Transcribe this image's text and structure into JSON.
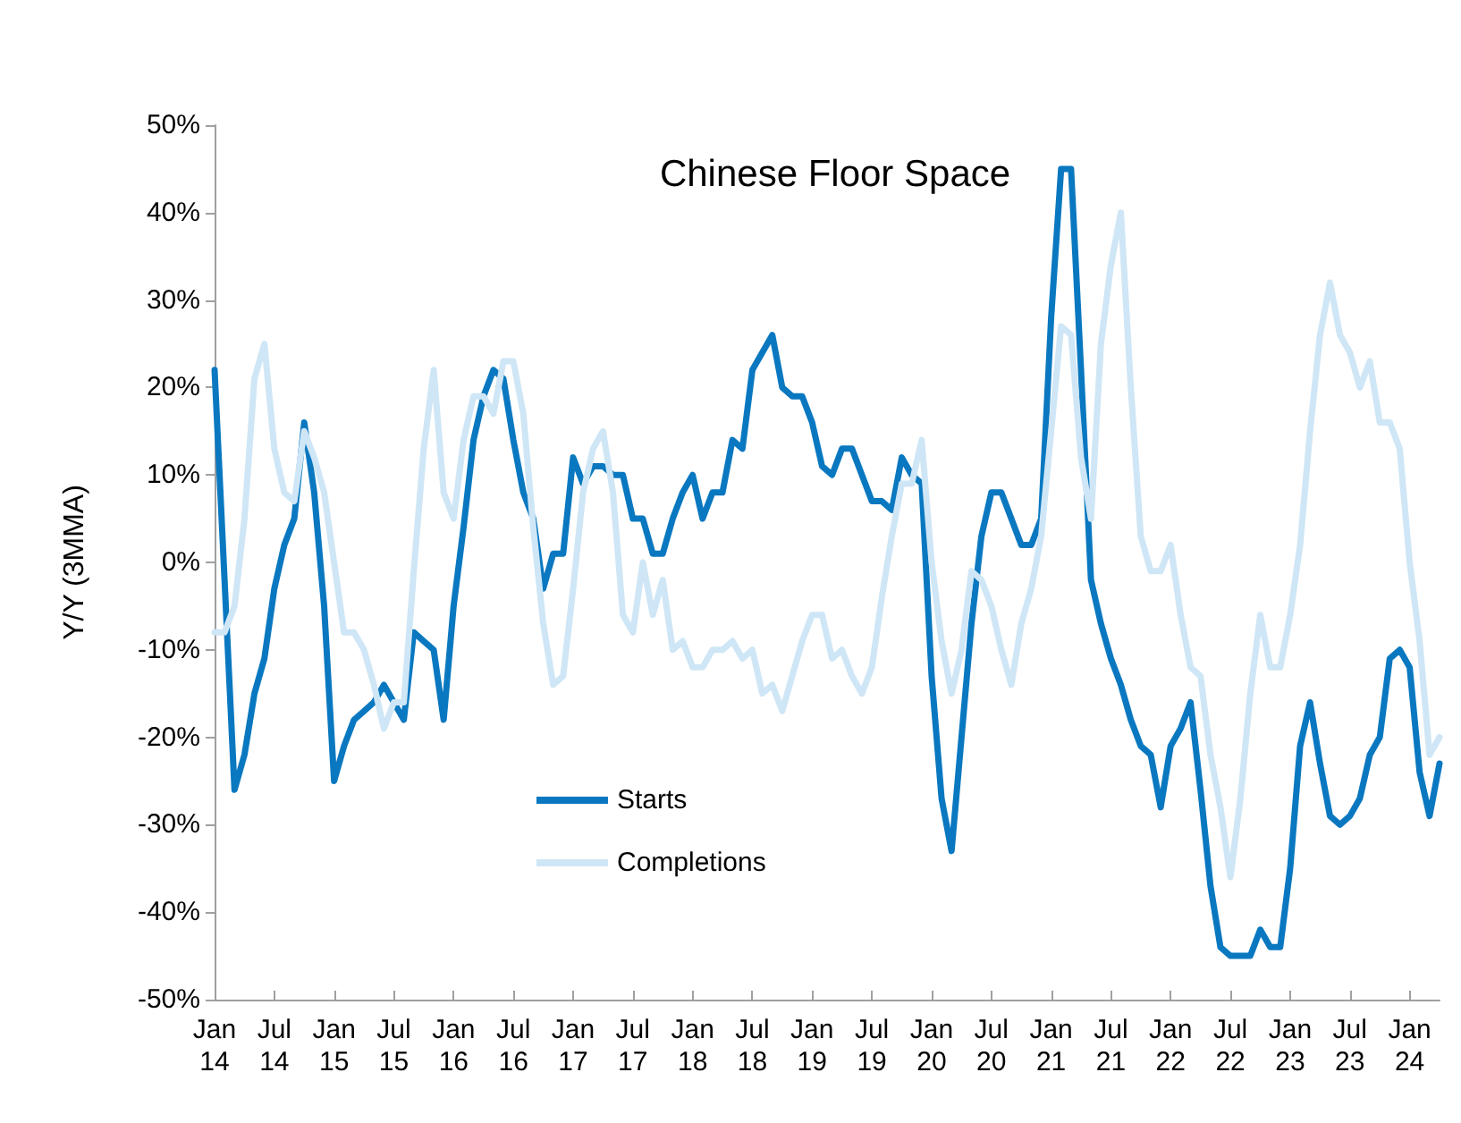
{
  "chart_data": {
    "type": "line",
    "title": "Chinese Floor Space",
    "ylabel": "Y/Y (3MMA)",
    "categories": [
      "Jan 14",
      null,
      null,
      null,
      null,
      null,
      "Jul 14",
      null,
      null,
      null,
      null,
      null,
      "Jan 15",
      null,
      null,
      null,
      null,
      null,
      "Jul 15",
      null,
      null,
      null,
      null,
      null,
      "Jan 16",
      null,
      null,
      null,
      null,
      null,
      "Jul 16",
      null,
      null,
      null,
      null,
      null,
      "Jan 17",
      null,
      null,
      null,
      null,
      null,
      "Jul 17",
      null,
      null,
      null,
      null,
      null,
      "Jan 18",
      null,
      null,
      null,
      null,
      null,
      "Jul 18",
      null,
      null,
      null,
      null,
      null,
      "Jan 19",
      null,
      null,
      null,
      null,
      null,
      "Jul 19",
      null,
      null,
      null,
      null,
      null,
      "Jan 20",
      null,
      null,
      null,
      null,
      null,
      "Jul 20",
      null,
      null,
      null,
      null,
      null,
      "Jan 21",
      null,
      null,
      null,
      null,
      null,
      "Jul 21",
      null,
      null,
      null,
      null,
      null,
      "Jan 22",
      null,
      null,
      null,
      null,
      null,
      "Jul 22",
      null,
      null,
      null,
      null,
      null,
      "Jan 23",
      null,
      null,
      null,
      null,
      null,
      "Jul 23",
      null,
      null,
      null,
      null,
      null,
      "Jan 24",
      null,
      null,
      null
    ],
    "series": [
      {
        "name": "Starts",
        "color": "#0a78c0",
        "values": [
          22,
          -2,
          -26,
          -22,
          -15,
          -11,
          -3,
          2,
          5,
          16,
          8,
          -5,
          -25,
          -21,
          -18,
          -17,
          -16,
          -14,
          -16,
          -18,
          -8,
          -9,
          -10,
          -18,
          -5,
          4,
          14,
          19,
          22,
          21,
          14,
          8,
          5,
          -3,
          1,
          1,
          12,
          9,
          11,
          11,
          10,
          10,
          5,
          5,
          1,
          1,
          5,
          8,
          10,
          5,
          8,
          8,
          14,
          13,
          22,
          24,
          26,
          20,
          19,
          19,
          16,
          11,
          10,
          13,
          13,
          10,
          7,
          7,
          6,
          12,
          10,
          9,
          -13,
          -27,
          -33,
          -20,
          -7,
          3,
          8,
          8,
          5,
          2,
          2,
          5,
          28,
          45,
          45,
          22,
          -2,
          -7,
          -11,
          -14,
          -18,
          -21,
          -22,
          -28,
          -21,
          -19,
          -16,
          -26,
          -37,
          -44,
          -45,
          -45,
          -45,
          -42,
          -44,
          -44,
          -35,
          -21,
          -16,
          -23,
          -29,
          -30,
          -29,
          -27,
          -22,
          -20,
          -11,
          -10,
          -12,
          -24,
          -29,
          -23
        ]
      },
      {
        "name": "Completions",
        "color": "#cfe6f6",
        "values": [
          -8,
          -8,
          -5,
          5,
          21,
          25,
          13,
          8,
          7,
          15,
          12,
          8,
          0,
          -8,
          -8,
          -10,
          -14,
          -19,
          -16,
          -16,
          -1,
          13,
          22,
          8,
          5,
          14,
          19,
          19,
          17,
          23,
          23,
          17,
          4,
          -7,
          -14,
          -13,
          -3,
          8,
          13,
          15,
          8,
          -6,
          -8,
          0,
          -6,
          -2,
          -10,
          -9,
          -12,
          -12,
          -10,
          -10,
          -9,
          -11,
          -10,
          -15,
          -14,
          -17,
          -13,
          -9,
          -6,
          -6,
          -11,
          -10,
          -13,
          -15,
          -12,
          -4,
          3,
          9,
          9,
          14,
          0,
          -9,
          -15,
          -10,
          -1,
          -2,
          -5,
          -10,
          -14,
          -7,
          -3,
          3,
          15,
          27,
          26,
          12,
          5,
          25,
          34,
          40,
          20,
          3,
          -1,
          -1,
          2,
          -6,
          -12,
          -13,
          -22,
          -28,
          -36,
          -27,
          -15,
          -6,
          -12,
          -12,
          -6,
          2,
          15,
          26,
          32,
          26,
          24,
          20,
          23,
          16,
          16,
          13,
          0,
          -9,
          -22,
          -20
        ]
      }
    ],
    "ylim": [
      -50,
      50
    ],
    "yticks": [
      {
        "value": -50,
        "label": "-50%"
      },
      {
        "value": -40,
        "label": "-40%"
      },
      {
        "value": -30,
        "label": "-30%"
      },
      {
        "value": -20,
        "label": "-20%"
      },
      {
        "value": -10,
        "label": "-10%"
      },
      {
        "value": 0,
        "label": "0%"
      },
      {
        "value": 10,
        "label": "10%"
      },
      {
        "value": 20,
        "label": "20%"
      },
      {
        "value": 30,
        "label": "30%"
      },
      {
        "value": 40,
        "label": "40%"
      },
      {
        "value": 50,
        "label": "50%"
      }
    ],
    "grid": false,
    "legend": "bottom",
    "marker": "none",
    "line_style": "solid"
  }
}
